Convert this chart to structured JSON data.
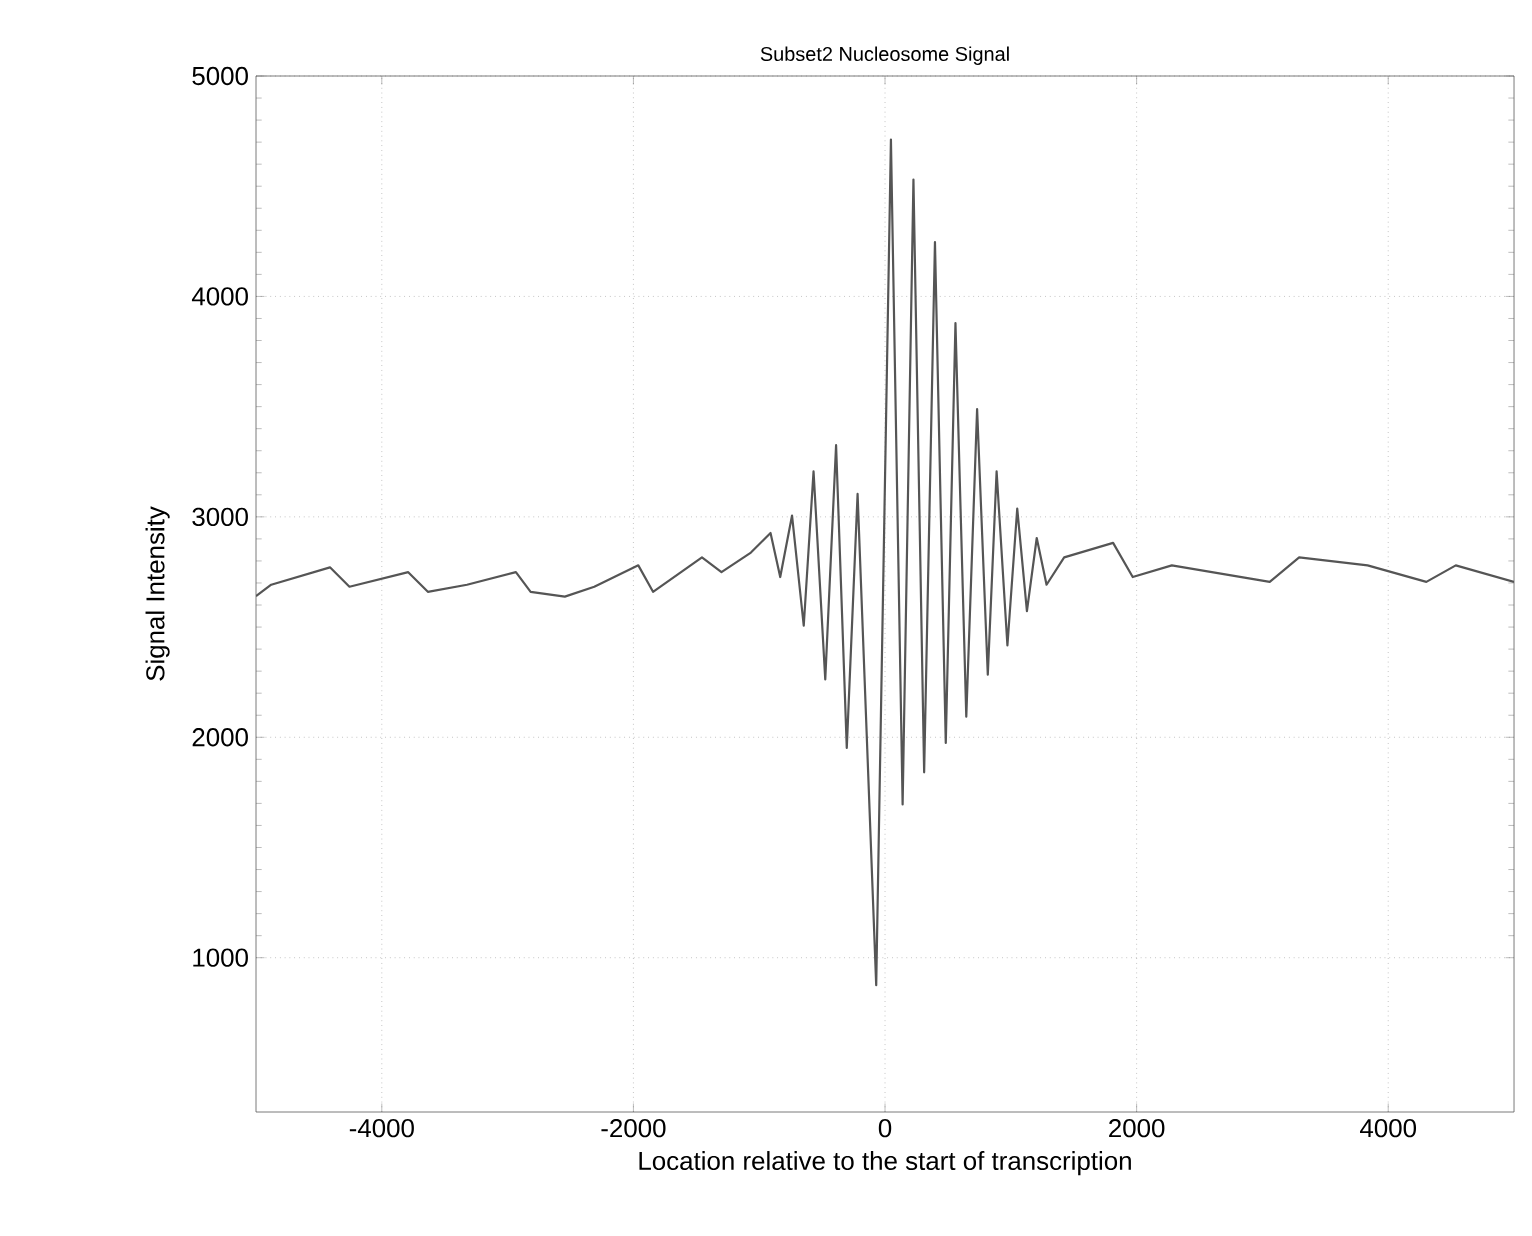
{
  "chart_data": {
    "type": "line",
    "title": "Subset2 Nucleosome Signal",
    "xlabel": "Location relative to the start of transcription",
    "ylabel": "Signal Intensity",
    "xlim": [
      -5000,
      5000
    ],
    "ylim": [
      300,
      5000
    ],
    "xticks": [
      -4000,
      -2000,
      0,
      2000,
      4000
    ],
    "yticks": [
      1000,
      2000,
      3000,
      4000,
      5000
    ],
    "grid": true,
    "marker": "none",
    "line_style": "solid",
    "series": [
      {
        "color": "#555555",
        "x": [
          -5000,
          -4879,
          -4412,
          -4257,
          -3790,
          -3634,
          -3323,
          -2934,
          -2817,
          -2545,
          -2311,
          -1961,
          -1844,
          -1455,
          -1300,
          -1066,
          -910,
          -833,
          -739,
          -646,
          -568,
          -475,
          -389,
          -304,
          -218,
          -70,
          47,
          140,
          226,
          311,
          397,
          483,
          560,
          646,
          732,
          817,
          887,
          973,
          1051,
          1128,
          1206,
          1284,
          1424,
          1813,
          1969,
          2280,
          3058,
          3292,
          3836,
          4303,
          4537,
          5000
        ],
        "values": [
          2640,
          2692,
          2771,
          2683,
          2749,
          2660,
          2692,
          2749,
          2660,
          2638,
          2683,
          2780,
          2660,
          2816,
          2749,
          2838,
          2927,
          2727,
          3006,
          2506,
          3206,
          2262,
          3325,
          1952,
          3104,
          875,
          4712,
          1695,
          4530,
          1841,
          4247,
          1974,
          3879,
          2093,
          3489,
          2284,
          3206,
          2417,
          3037,
          2572,
          2904,
          2692,
          2816,
          2882,
          2727,
          2780,
          2705,
          2816,
          2780,
          2705,
          2780,
          2705
        ]
      }
    ]
  }
}
